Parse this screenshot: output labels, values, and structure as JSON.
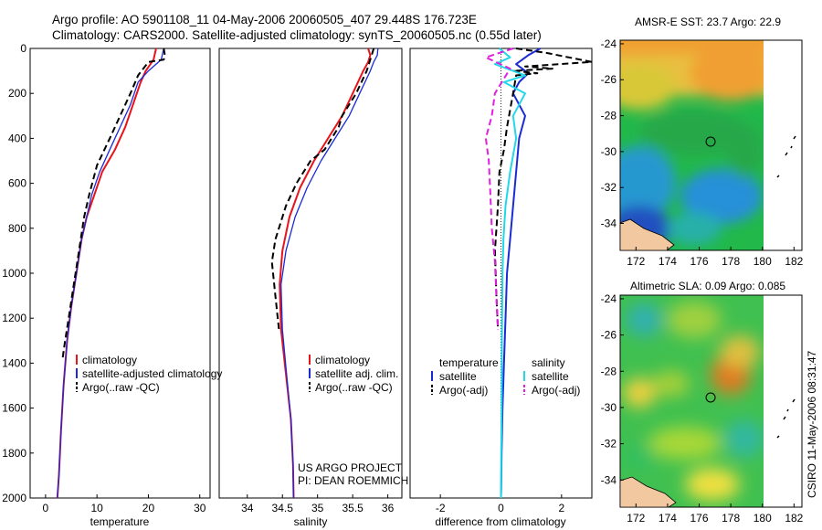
{
  "header": {
    "line1": "Argo profile: AO 5901108_11 04-May-2006 20060505_407 29.448S 176.723E",
    "line2": "Climatology: CARS2000. Satellite-adjusted climatology: synTS_20060505.nc (0.55d later)"
  },
  "credits": {
    "project": "US ARGO PROJECT",
    "pi": "PI: DEAN ROEMMICH",
    "side_stamp": "CSIRO 11-May-2006 08:31:47"
  },
  "colors": {
    "climatology": "#e8141c",
    "satellite": "#1a2ad6",
    "argo": "#000000",
    "salinity_satellite": "#22d8e8",
    "salinity_argo": "#e020e0"
  },
  "chart_data": [
    {
      "type": "line",
      "id": "temperature",
      "xlabel": "temperature",
      "xlim": [
        -3,
        32
      ],
      "ylim": [
        2000,
        0
      ],
      "y_reversed": true,
      "xticks": [
        0,
        10,
        20,
        30
      ],
      "yticks": [
        0,
        200,
        400,
        600,
        800,
        1000,
        1200,
        1400,
        1600,
        1800,
        2000
      ],
      "legend": {
        "placement": "lower-right",
        "entries": [
          {
            "label": "climatology",
            "color": "#e8141c",
            "style": "solid"
          },
          {
            "label": "satellite-adjusted climatology",
            "color": "#1a2ad6",
            "style": "solid"
          },
          {
            "label": "Argo(..raw -QC)",
            "color": "#000000",
            "style": "dashed"
          }
        ]
      },
      "series": [
        {
          "name": "climatology",
          "color": "#e8141c",
          "style": "solid",
          "width": 2,
          "x": [
            21.5,
            21.0,
            19.5,
            18.5,
            17.0,
            15.5,
            13.5,
            11.0,
            9.5,
            8.0,
            7.0,
            6.0,
            5.0,
            4.2,
            3.5,
            3.0,
            2.6,
            2.3
          ],
          "y": [
            0,
            50,
            100,
            150,
            250,
            350,
            450,
            550,
            650,
            750,
            850,
            1000,
            1150,
            1300,
            1500,
            1700,
            1900,
            2000
          ]
        },
        {
          "name": "satellite-adjusted climatology",
          "color": "#1a2ad6",
          "style": "solid",
          "width": 1.3,
          "x": [
            23.0,
            22.5,
            20.0,
            18.0,
            16.5,
            14.5,
            12.5,
            10.5,
            9.0,
            8.0,
            7.0,
            6.0,
            5.0,
            4.2,
            3.5,
            3.0,
            2.6,
            2.3
          ],
          "y": [
            0,
            50,
            100,
            150,
            250,
            350,
            450,
            550,
            650,
            750,
            850,
            1000,
            1150,
            1300,
            1500,
            1700,
            1900,
            2000
          ]
        },
        {
          "name": "Argo(..raw -QC)",
          "color": "#000000",
          "style": "dashed",
          "width": 2,
          "x": [
            23.0,
            23.2,
            23.0,
            20.0,
            18.0,
            16.5,
            14.5,
            12.5,
            10.0,
            8.5,
            7.5,
            6.5,
            5.5,
            4.5,
            3.8,
            3.3
          ],
          "y": [
            0,
            30,
            50,
            60,
            120,
            200,
            300,
            400,
            520,
            650,
            750,
            900,
            1050,
            1200,
            1300,
            1380
          ]
        }
      ]
    },
    {
      "type": "line",
      "id": "salinity",
      "xlabel": "salinity",
      "xlim": [
        33.6,
        36.2
      ],
      "ylim": [
        2000,
        0
      ],
      "y_reversed": true,
      "xticks": [
        34,
        34.5,
        35,
        35.5,
        36
      ],
      "xtick_labels": [
        "34",
        "34.5",
        "35",
        "35.5",
        "36"
      ],
      "legend": {
        "placement": "lower-right",
        "entries": [
          {
            "label": "climatology",
            "color": "#e8141c",
            "style": "solid"
          },
          {
            "label": "satellite adj. clim.",
            "color": "#1a2ad6",
            "style": "solid"
          },
          {
            "label": "Argo(..raw -QC)",
            "color": "#000000",
            "style": "dashed"
          }
        ]
      },
      "series": [
        {
          "name": "climatology",
          "color": "#e8141c",
          "style": "solid",
          "width": 2,
          "x": [
            35.72,
            35.75,
            35.72,
            35.65,
            35.5,
            35.35,
            35.15,
            34.95,
            34.75,
            34.6,
            34.5,
            34.46,
            34.48,
            34.55,
            34.62,
            34.65,
            34.66
          ],
          "y": [
            0,
            30,
            60,
            100,
            200,
            300,
            400,
            500,
            620,
            750,
            900,
            1050,
            1250,
            1450,
            1650,
            1850,
            2000
          ]
        },
        {
          "name": "satellite adj. clim.",
          "color": "#1a2ad6",
          "style": "solid",
          "width": 1.3,
          "x": [
            35.86,
            35.85,
            35.8,
            35.75,
            35.6,
            35.45,
            35.25,
            35.05,
            34.85,
            34.68,
            34.55,
            34.48,
            34.5,
            34.56,
            34.62,
            34.65,
            34.66
          ],
          "y": [
            0,
            30,
            60,
            100,
            200,
            300,
            400,
            500,
            620,
            750,
            900,
            1050,
            1250,
            1450,
            1650,
            1850,
            2000
          ]
        },
        {
          "name": "Argo(..raw -QC)",
          "color": "#000000",
          "style": "dashed",
          "width": 2,
          "x": [
            35.8,
            35.75,
            35.7,
            35.55,
            35.35,
            35.3,
            35.1,
            34.9,
            34.7,
            34.55,
            34.4,
            34.35,
            34.4,
            34.45
          ],
          "y": [
            0,
            50,
            100,
            200,
            300,
            350,
            450,
            500,
            600,
            700,
            850,
            950,
            1100,
            1250
          ]
        }
      ]
    },
    {
      "type": "line",
      "id": "difference",
      "xlabel": "difference from climatology",
      "xlim": [
        -3,
        3
      ],
      "ylim": [
        2000,
        0
      ],
      "y_reversed": true,
      "xticks": [
        -2,
        0,
        2
      ],
      "legend": {
        "placement": "lower-center",
        "columns": [
          {
            "heading": "temperature",
            "entries": [
              {
                "label": "satellite",
                "color": "#1a2ad6",
                "style": "solid"
              },
              {
                "label": "Argo(-adj)",
                "color": "#000000",
                "style": "dashed"
              }
            ]
          },
          {
            "heading": "salinity",
            "entries": [
              {
                "label": "satellite",
                "color": "#22d8e8",
                "style": "solid"
              },
              {
                "label": "Argo(-adj)",
                "color": "#e020e0",
                "style": "dashed"
              }
            ]
          }
        ]
      },
      "series": [
        {
          "name": "temperature satellite",
          "color": "#1a2ad6",
          "style": "solid",
          "width": 2,
          "x": [
            1.3,
            0.9,
            0.5,
            0.9,
            0.6,
            0.4,
            0.8,
            0.6,
            0.5,
            0.4,
            0.3,
            0.2,
            0.15,
            0.1,
            0.05,
            0.02,
            0.01,
            0.0
          ],
          "y": [
            0,
            30,
            70,
            110,
            150,
            200,
            300,
            400,
            550,
            700,
            850,
            1000,
            1200,
            1400,
            1600,
            1800,
            1950,
            2000
          ]
        },
        {
          "name": "temperature Argo(-adj)",
          "color": "#000000",
          "style": "dashed",
          "width": 2,
          "x": [
            0.5,
            1.5,
            3.0,
            0.8,
            1.7,
            0.4,
            1.2,
            0.5,
            0.4,
            0.2,
            0.1,
            -0.05,
            -0.1,
            -0.2,
            -0.15,
            -0.1
          ],
          "y": [
            0,
            20,
            60,
            80,
            90,
            100,
            110,
            120,
            200,
            350,
            450,
            550,
            700,
            900,
            1100,
            1250
          ]
        },
        {
          "name": "salinity satellite",
          "color": "#22d8e8",
          "style": "solid",
          "width": 2,
          "x": [
            -0.05,
            0.3,
            -0.2,
            0.8,
            0.1,
            0.8,
            0.4,
            0.5,
            0.3,
            0.15,
            0.08,
            0.05,
            0.03,
            0.02,
            0.01,
            0.0
          ],
          "y": [
            0,
            40,
            70,
            120,
            150,
            200,
            300,
            400,
            550,
            700,
            850,
            1000,
            1300,
            1600,
            1800,
            2000
          ]
        },
        {
          "name": "salinity Argo(-adj)",
          "color": "#e020e0",
          "style": "dashed",
          "width": 2,
          "x": [
            0.4,
            -0.5,
            0.3,
            -0.2,
            -0.3,
            -0.5,
            -0.4,
            -0.35,
            -0.3,
            -0.2,
            -0.15,
            -0.1
          ],
          "y": [
            0,
            40,
            90,
            200,
            300,
            400,
            500,
            650,
            800,
            950,
            1100,
            1250
          ]
        }
      ]
    },
    {
      "type": "heatmap",
      "id": "sst_map",
      "title": "AMSR-E SST: 23.7 Argo: 22.9",
      "xlim": [
        171,
        182.5
      ],
      "ylim": [
        -35.5,
        -23.8
      ],
      "xticks": [
        172,
        174,
        176,
        178,
        180,
        182
      ],
      "yticks": [
        -34,
        -32,
        -30,
        -28,
        -26,
        -24
      ],
      "marker": {
        "lon": 176.723,
        "lat": -29.448
      },
      "data_extent_lon": 180
    },
    {
      "type": "heatmap",
      "id": "sla_map",
      "title": "Altimetric SLA: 0.09 Argo: 0.085",
      "xlim": [
        171,
        182.5
      ],
      "ylim": [
        -35.5,
        -23.8
      ],
      "xticks": [
        172,
        174,
        176,
        178,
        180,
        182
      ],
      "yticks": [
        -34,
        -32,
        -30,
        -28,
        -26,
        -24
      ],
      "marker": {
        "lon": 176.723,
        "lat": -29.448
      },
      "data_extent_lon": 180
    }
  ]
}
